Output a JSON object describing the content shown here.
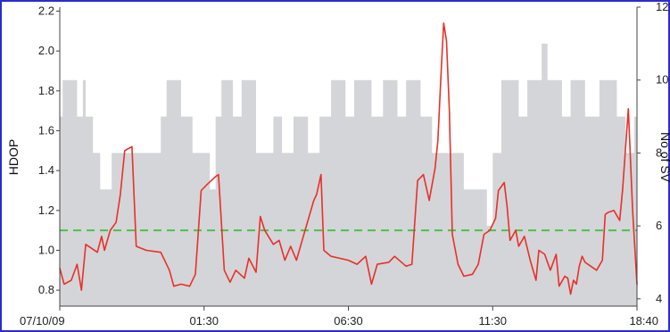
{
  "chart_data": {
    "type": "line",
    "title": "",
    "xlabel": "",
    "ylabel": "HDOP",
    "ylabel_right": "No of SV",
    "x_tick_labels": [
      "07/10/09",
      "01:30",
      "06:30",
      "11:30",
      "18:40"
    ],
    "x_tick_hours": [
      0,
      5,
      10,
      15,
      20
    ],
    "xlim_hours": [
      0,
      20
    ],
    "ylim": [
      0.72,
      2.22
    ],
    "y2lim": [
      3.8,
      12
    ],
    "y_ticks": [
      "0.8",
      "1.0",
      "1.2",
      "1.4",
      "1.6",
      "1.8",
      "2.0",
      "2.2"
    ],
    "y2_ticks": [
      "4",
      "6",
      "8",
      "10",
      "12"
    ],
    "reference_line": {
      "y": 1.1,
      "style": "dashed",
      "color": "#4cc04c"
    },
    "colors": {
      "hdop": "#e8302a",
      "sv_fill": "#d4d5d8",
      "frame": "#2b2bd0"
    },
    "series": [
      {
        "axis": "right",
        "style": "step-area",
        "values": [
          [
            0.0,
            9
          ],
          [
            0.1,
            10
          ],
          [
            0.6,
            9
          ],
          [
            0.8,
            10
          ],
          [
            0.9,
            9
          ],
          [
            1.15,
            8
          ],
          [
            1.4,
            7
          ],
          [
            1.8,
            8
          ],
          [
            2.6,
            8
          ],
          [
            3.5,
            9
          ],
          [
            3.7,
            10
          ],
          [
            4.2,
            9
          ],
          [
            4.6,
            8
          ],
          [
            5.2,
            7
          ],
          [
            5.4,
            9
          ],
          [
            5.6,
            10
          ],
          [
            6.0,
            9
          ],
          [
            6.3,
            10
          ],
          [
            6.8,
            8
          ],
          [
            7.4,
            9
          ],
          [
            7.7,
            8
          ],
          [
            8.1,
            9
          ],
          [
            8.6,
            8
          ],
          [
            9.0,
            9
          ],
          [
            9.4,
            10
          ],
          [
            9.9,
            9
          ],
          [
            10.2,
            10
          ],
          [
            10.8,
            9
          ],
          [
            11.2,
            10
          ],
          [
            11.7,
            9
          ],
          [
            12.0,
            10
          ],
          [
            12.5,
            9
          ],
          [
            12.9,
            8
          ],
          [
            14.0,
            7
          ],
          [
            14.8,
            6
          ],
          [
            15.0,
            8
          ],
          [
            15.3,
            10
          ],
          [
            15.9,
            9
          ],
          [
            16.2,
            10
          ],
          [
            16.7,
            11
          ],
          [
            16.9,
            10
          ],
          [
            17.4,
            9
          ],
          [
            17.7,
            10
          ],
          [
            18.2,
            9
          ],
          [
            18.7,
            10
          ],
          [
            19.3,
            9
          ],
          [
            19.6,
            8
          ],
          [
            19.9,
            9
          ],
          [
            20.0,
            9
          ]
        ]
      },
      {
        "axis": "left",
        "style": "line",
        "values": [
          [
            0.0,
            0.91
          ],
          [
            0.15,
            0.83
          ],
          [
            0.4,
            0.85
          ],
          [
            0.6,
            0.93
          ],
          [
            0.75,
            0.8
          ],
          [
            0.9,
            1.03
          ],
          [
            1.1,
            1.01
          ],
          [
            1.3,
            0.99
          ],
          [
            1.45,
            1.07
          ],
          [
            1.55,
            1.0
          ],
          [
            1.75,
            1.1
          ],
          [
            1.95,
            1.14
          ],
          [
            2.1,
            1.28
          ],
          [
            2.25,
            1.5
          ],
          [
            2.5,
            1.52
          ],
          [
            2.65,
            1.02
          ],
          [
            3.0,
            1.0
          ],
          [
            3.5,
            0.99
          ],
          [
            3.8,
            0.9
          ],
          [
            3.95,
            0.82
          ],
          [
            4.2,
            0.83
          ],
          [
            4.5,
            0.82
          ],
          [
            4.7,
            0.88
          ],
          [
            4.9,
            1.3
          ],
          [
            5.1,
            1.33
          ],
          [
            5.4,
            1.37
          ],
          [
            5.5,
            1.38
          ],
          [
            5.7,
            0.9
          ],
          [
            5.9,
            0.84
          ],
          [
            6.1,
            0.9
          ],
          [
            6.4,
            0.86
          ],
          [
            6.55,
            0.96
          ],
          [
            6.8,
            0.89
          ],
          [
            6.95,
            1.17
          ],
          [
            7.1,
            1.1
          ],
          [
            7.4,
            1.03
          ],
          [
            7.6,
            1.05
          ],
          [
            7.8,
            0.95
          ],
          [
            8.0,
            1.02
          ],
          [
            8.2,
            0.95
          ],
          [
            8.4,
            1.05
          ],
          [
            8.6,
            1.15
          ],
          [
            8.8,
            1.25
          ],
          [
            8.9,
            1.28
          ],
          [
            9.05,
            1.38
          ],
          [
            9.15,
            1.0
          ],
          [
            9.4,
            0.97
          ],
          [
            9.7,
            0.96
          ],
          [
            10.0,
            0.95
          ],
          [
            10.3,
            0.93
          ],
          [
            10.6,
            0.97
          ],
          [
            10.8,
            0.83
          ],
          [
            11.0,
            0.93
          ],
          [
            11.4,
            0.94
          ],
          [
            11.6,
            0.97
          ],
          [
            12.0,
            0.92
          ],
          [
            12.2,
            0.93
          ],
          [
            12.4,
            1.35
          ],
          [
            12.6,
            1.38
          ],
          [
            12.8,
            1.25
          ],
          [
            13.0,
            1.41
          ],
          [
            13.1,
            1.55
          ],
          [
            13.2,
            1.85
          ],
          [
            13.3,
            2.14
          ],
          [
            13.4,
            2.05
          ],
          [
            13.5,
            1.7
          ],
          [
            13.6,
            1.08
          ],
          [
            13.8,
            0.93
          ],
          [
            14.0,
            0.87
          ],
          [
            14.3,
            0.88
          ],
          [
            14.5,
            0.93
          ],
          [
            14.7,
            1.08
          ],
          [
            14.9,
            1.1
          ],
          [
            15.1,
            1.16
          ],
          [
            15.2,
            1.3
          ],
          [
            15.4,
            1.34
          ],
          [
            15.5,
            1.22
          ],
          [
            15.6,
            1.05
          ],
          [
            15.8,
            1.1
          ],
          [
            15.9,
            1.02
          ],
          [
            16.1,
            1.07
          ],
          [
            16.3,
            0.95
          ],
          [
            16.5,
            0.85
          ],
          [
            16.6,
            1.0
          ],
          [
            16.8,
            0.98
          ],
          [
            17.0,
            0.9
          ],
          [
            17.2,
            0.98
          ],
          [
            17.3,
            0.82
          ],
          [
            17.5,
            0.87
          ],
          [
            17.6,
            0.86
          ],
          [
            17.7,
            0.78
          ],
          [
            17.8,
            0.85
          ],
          [
            17.9,
            0.83
          ],
          [
            18.0,
            0.92
          ],
          [
            18.1,
            0.97
          ],
          [
            18.2,
            0.94
          ],
          [
            18.4,
            0.92
          ],
          [
            18.6,
            0.9
          ],
          [
            18.8,
            0.95
          ],
          [
            18.9,
            1.18
          ],
          [
            19.0,
            1.19
          ],
          [
            19.2,
            1.2
          ],
          [
            19.4,
            1.15
          ],
          [
            19.5,
            1.3
          ],
          [
            19.7,
            1.71
          ],
          [
            19.85,
            1.2
          ],
          [
            20.0,
            0.83
          ]
        ]
      }
    ]
  }
}
